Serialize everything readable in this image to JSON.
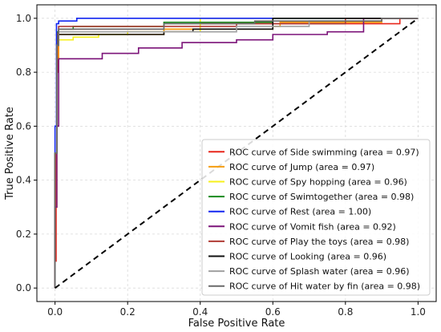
{
  "chart_data": {
    "type": "line",
    "title": "",
    "xlabel": "False Positive Rate",
    "ylabel": "True Positive Rate",
    "xlim": [
      -0.05,
      1.05
    ],
    "ylim": [
      -0.05,
      1.05
    ],
    "xticks": [
      0.0,
      0.2,
      0.4,
      0.6,
      0.8,
      1.0
    ],
    "yticks": [
      0.0,
      0.2,
      0.4,
      0.6,
      0.8,
      1.0
    ],
    "tick_labels_x": [
      "0.0",
      "0.2",
      "0.4",
      "0.6",
      "0.8",
      "1.0"
    ],
    "tick_labels_y": [
      "0.0",
      "0.2",
      "0.4",
      "0.6",
      "0.8",
      "1.0"
    ],
    "grid": true,
    "legend_placement": "lower-right",
    "diagonal": {
      "x": [
        0,
        1
      ],
      "y": [
        0,
        1
      ],
      "color": "#000000",
      "style": "dashed"
    },
    "series": [
      {
        "name": "ROC curve of Side swimming (area = 0.97)",
        "color": "#e8271c",
        "x": [
          0,
          0,
          0.003,
          0.003,
          0.005,
          0.005,
          0.008,
          0.008,
          0.01,
          0.01,
          0.4,
          0.4,
          0.95,
          0.95,
          1.0
        ],
        "y": [
          0,
          0.1,
          0.1,
          0.5,
          0.5,
          0.8,
          0.8,
          0.95,
          0.95,
          0.96,
          0.96,
          0.98,
          0.98,
          1.0,
          1.0
        ]
      },
      {
        "name": "ROC curve of Jump (area = 0.97)",
        "color": "#f59d0e",
        "x": [
          0,
          0,
          0.005,
          0.005,
          0.01,
          0.01,
          0.3,
          0.3,
          0.6,
          0.6,
          0.62,
          0.62,
          0.9,
          0.9,
          1.0
        ],
        "y": [
          0,
          0.3,
          0.3,
          0.85,
          0.85,
          0.94,
          0.94,
          0.96,
          0.96,
          0.97,
          0.97,
          0.985,
          0.985,
          1.0,
          1.0
        ]
      },
      {
        "name": "ROC curve of Spy hopping (area = 0.96)",
        "color": "#f7f01b",
        "x": [
          0,
          0,
          0.005,
          0.005,
          0.01,
          0.01,
          0.05,
          0.05,
          0.12,
          0.12,
          0.2,
          0.2,
          0.4,
          0.4,
          1.0
        ],
        "y": [
          0,
          0.5,
          0.5,
          0.9,
          0.9,
          0.92,
          0.92,
          0.93,
          0.93,
          0.94,
          0.94,
          0.95,
          0.95,
          1.0,
          1.0
        ]
      },
      {
        "name": "ROC curve of Swimtogether (area = 0.98)",
        "color": "#198a1e",
        "x": [
          0,
          0,
          0.005,
          0.005,
          0.01,
          0.01,
          0.05,
          0.05,
          0.3,
          0.3,
          0.6,
          0.6,
          1.0
        ],
        "y": [
          0,
          0.5,
          0.5,
          0.95,
          0.95,
          0.96,
          0.96,
          0.97,
          0.97,
          0.985,
          0.985,
          1.0,
          1.0
        ]
      },
      {
        "name": "ROC curve of Rest (area = 1.00)",
        "color": "#1226f0",
        "x": [
          0,
          0,
          0.004,
          0.004,
          0.01,
          0.01,
          0.06,
          0.06,
          1.0
        ],
        "y": [
          0,
          0.6,
          0.6,
          0.98,
          0.98,
          0.99,
          0.99,
          1.0,
          1.0
        ]
      },
      {
        "name": "ROC curve of Vomit fish (area = 0.92)",
        "color": "#7b1278",
        "x": [
          0,
          0,
          0.005,
          0.005,
          0.01,
          0.01,
          0.13,
          0.13,
          0.23,
          0.23,
          0.35,
          0.35,
          0.5,
          0.5,
          0.6,
          0.6,
          0.75,
          0.75,
          0.85,
          0.85,
          1.0
        ],
        "y": [
          0,
          0.3,
          0.3,
          0.6,
          0.6,
          0.85,
          0.85,
          0.87,
          0.87,
          0.89,
          0.89,
          0.91,
          0.91,
          0.92,
          0.92,
          0.94,
          0.94,
          0.95,
          0.95,
          1.0,
          1.0
        ]
      },
      {
        "name": "ROC curve of Play the toys (area = 0.98)",
        "color": "#b03b35",
        "x": [
          0,
          0,
          0.005,
          0.005,
          0.01,
          0.01,
          0.5,
          0.5,
          0.8,
          0.8,
          1.0
        ],
        "y": [
          0,
          0.5,
          0.5,
          0.9,
          0.9,
          0.97,
          0.97,
          0.98,
          0.98,
          1.0,
          1.0
        ]
      },
      {
        "name": "ROC curve of Looking (area = 0.96)",
        "color": "#111111",
        "x": [
          0,
          0,
          0.005,
          0.005,
          0.01,
          0.01,
          0.3,
          0.3,
          0.38,
          0.38,
          0.6,
          0.6,
          1.0
        ],
        "y": [
          0,
          0.5,
          0.5,
          0.9,
          0.9,
          0.94,
          0.94,
          0.95,
          0.95,
          0.96,
          0.96,
          1.0,
          1.0
        ]
      },
      {
        "name": "ROC curve of Splash water (area = 0.96)",
        "color": "#a0a0a0",
        "x": [
          0,
          0,
          0.005,
          0.005,
          0.01,
          0.01,
          0.5,
          0.5,
          0.7,
          0.7,
          0.9,
          0.9,
          1.0
        ],
        "y": [
          0,
          0.5,
          0.5,
          0.9,
          0.9,
          0.95,
          0.95,
          0.97,
          0.97,
          0.99,
          0.99,
          1.0,
          1.0
        ]
      },
      {
        "name": "ROC curve of Hit water by fin (area = 0.98)",
        "color": "#6a6a6a",
        "x": [
          0,
          0,
          0.005,
          0.005,
          0.01,
          0.01,
          0.3,
          0.3,
          0.55,
          0.55,
          0.9,
          0.9,
          1.0
        ],
        "y": [
          0,
          0.5,
          0.5,
          0.9,
          0.9,
          0.96,
          0.96,
          0.98,
          0.98,
          0.99,
          0.99,
          1.0,
          1.0
        ]
      }
    ]
  }
}
